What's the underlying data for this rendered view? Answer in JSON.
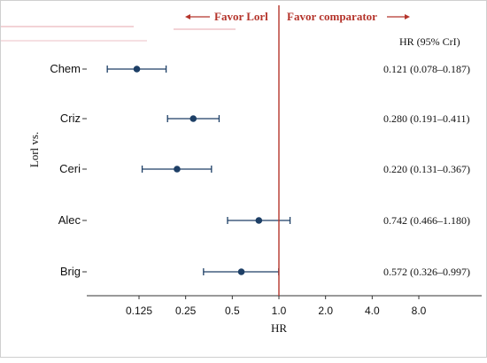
{
  "chart_data": {
    "type": "forest",
    "xlabel": "HR",
    "ylabel": "Lorl vs.",
    "x_scale": "log2",
    "xlim": [
      0.0625,
      16
    ],
    "x_ticks": [
      "0.125",
      "0.25",
      "0.5",
      "1.0",
      "2.0",
      "4.0",
      "8.0"
    ],
    "x_tick_values": [
      0.125,
      0.25,
      0.5,
      1.0,
      2.0,
      4.0,
      8.0
    ],
    "reference_line": 1.0,
    "favor_left": "Favor Lorl",
    "favor_right": "Favor comparator",
    "estimate_header": "HR (95% CrI)",
    "rows": [
      {
        "label": "Chem",
        "hr": 0.121,
        "lower": 0.078,
        "upper": 0.187,
        "text": "0.121 (0.078–0.187)"
      },
      {
        "label": "Criz",
        "hr": 0.28,
        "lower": 0.191,
        "upper": 0.411,
        "text": "0.280 (0.191–0.411)"
      },
      {
        "label": "Ceri",
        "hr": 0.22,
        "lower": 0.131,
        "upper": 0.367,
        "text": "0.220 (0.131–0.367)"
      },
      {
        "label": "Alec",
        "hr": 0.742,
        "lower": 0.466,
        "upper": 1.18,
        "text": "0.742 (0.466–1.180)"
      },
      {
        "label": "Brig",
        "hr": 0.572,
        "lower": 0.326,
        "upper": 0.997,
        "text": "0.572 (0.326–0.997)"
      }
    ],
    "colors": {
      "point": "#1d3f66",
      "reference": "#b5352c",
      "favor": "#b5352c"
    }
  }
}
